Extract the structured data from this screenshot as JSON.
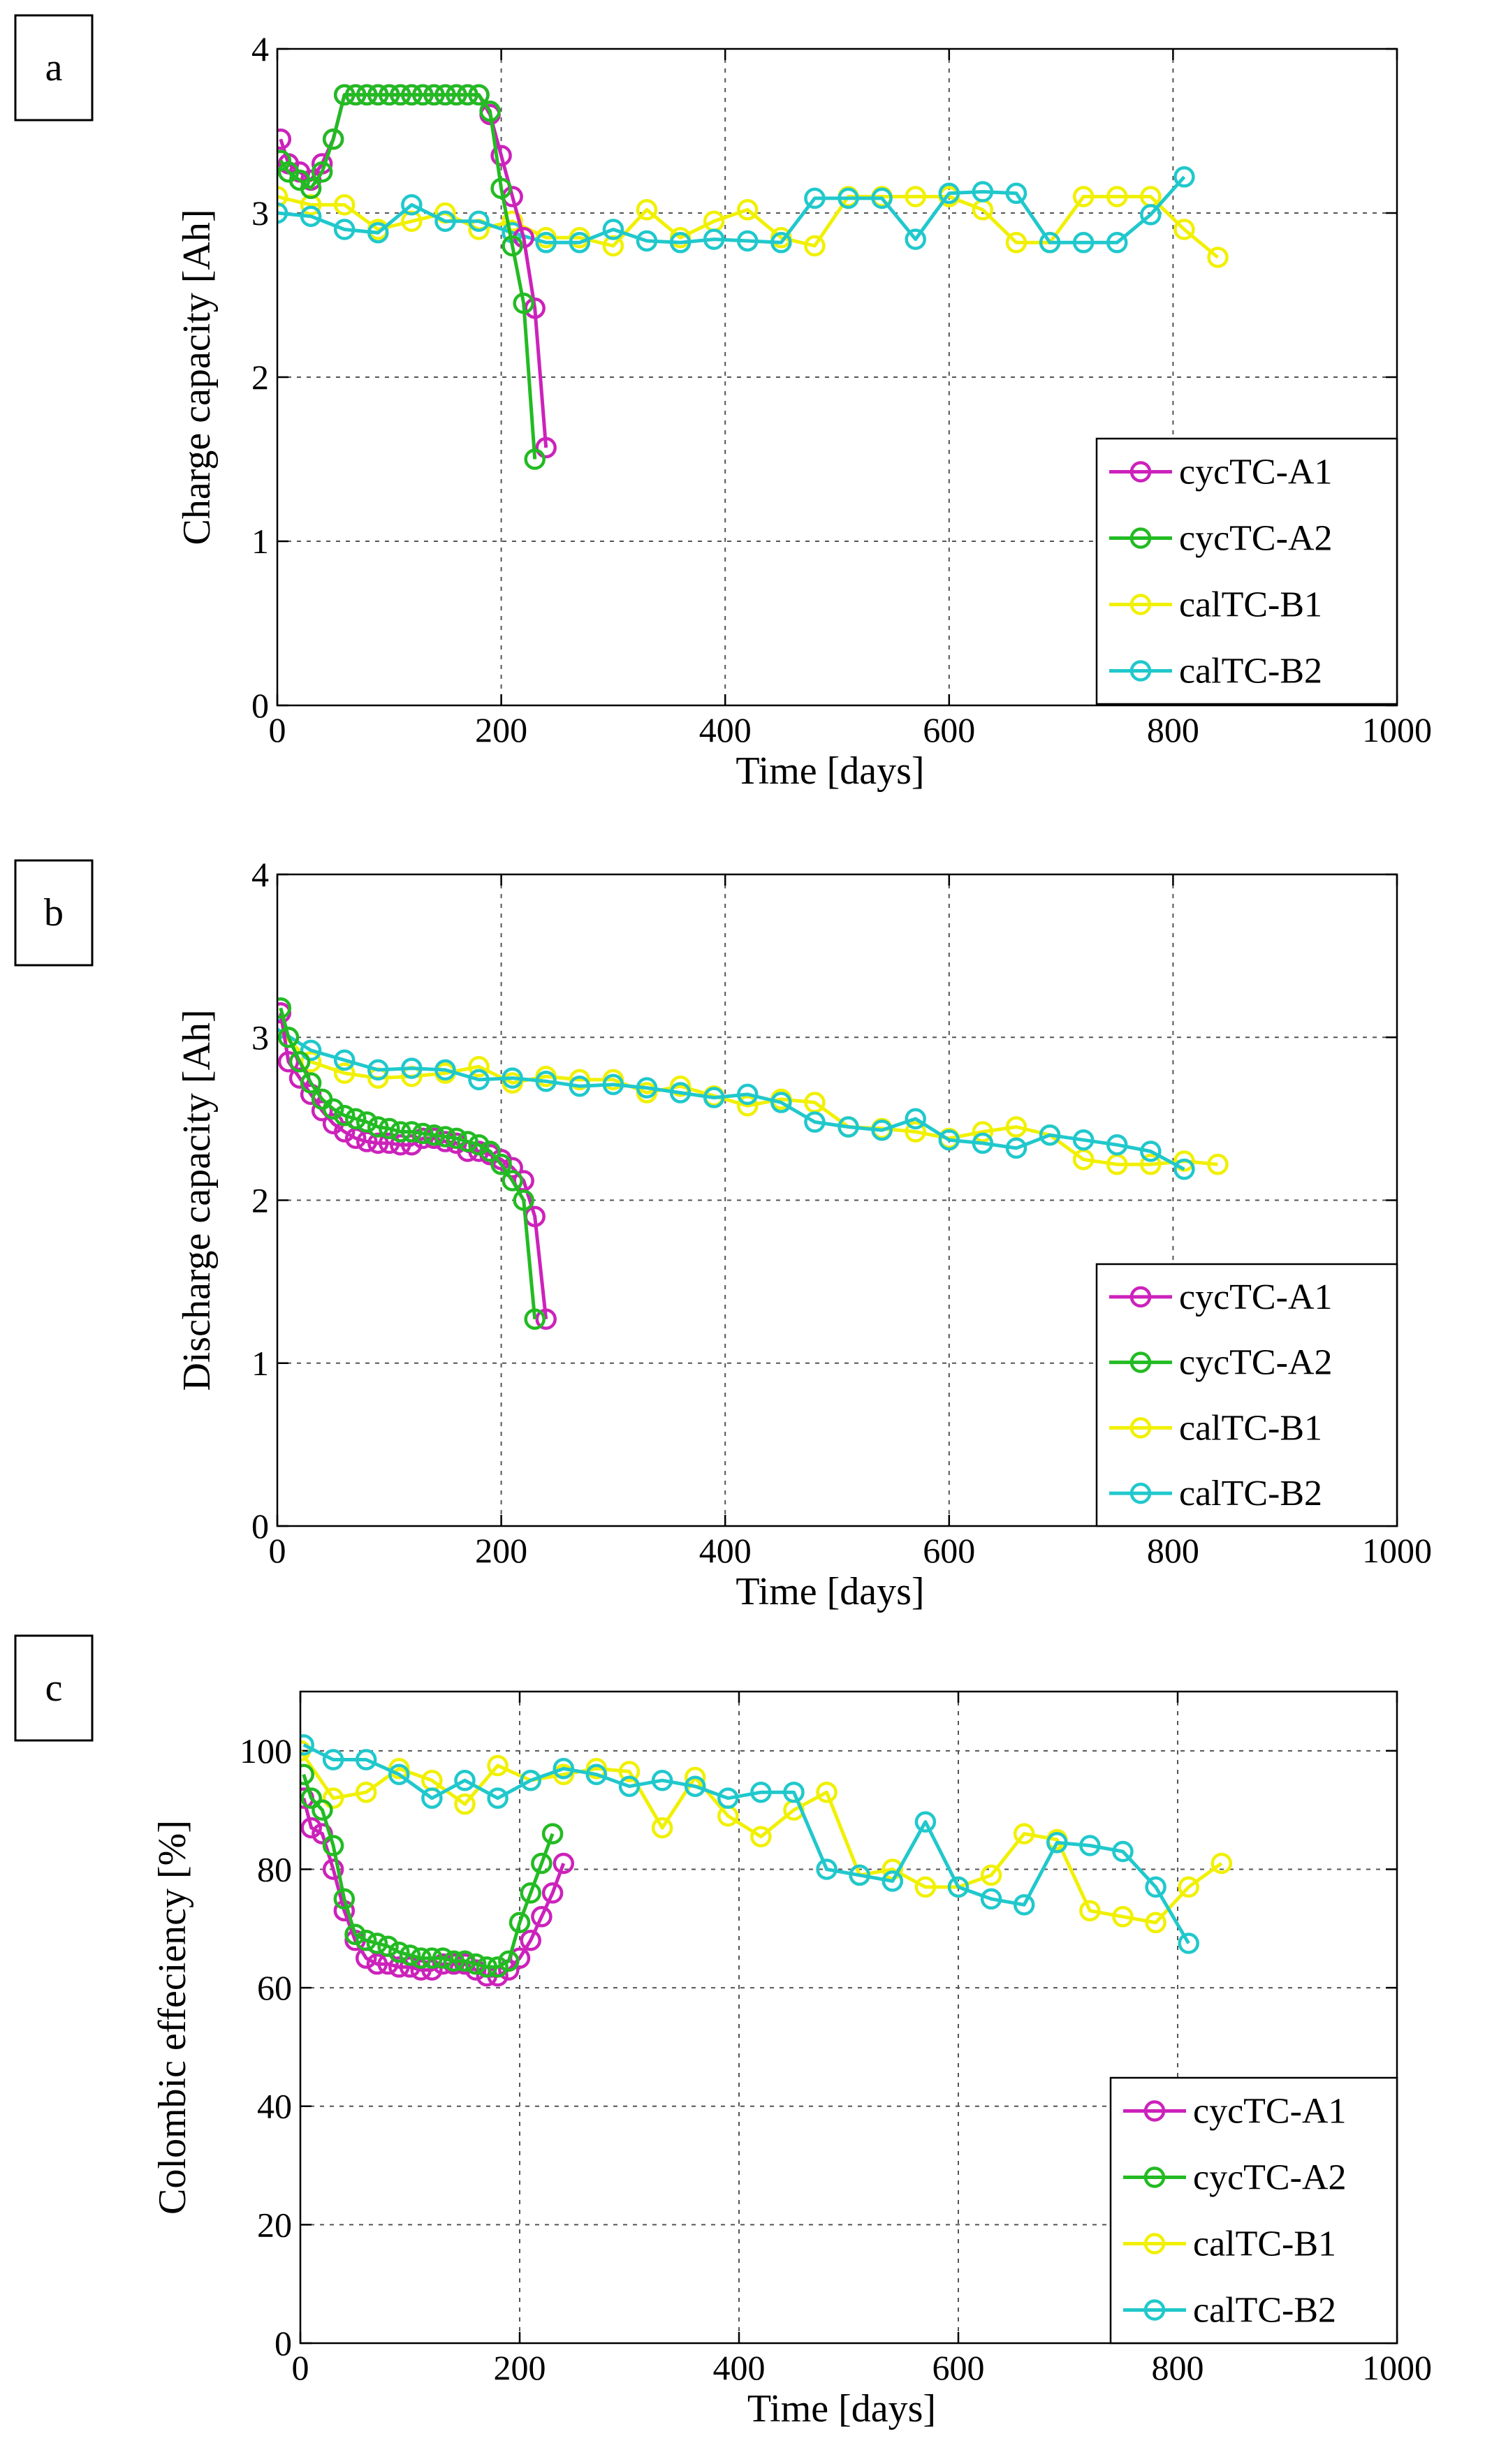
{
  "colors": {
    "cycTC-A1": "#cc22bb",
    "cycTC-A2": "#22bb22",
    "calTC-B1": "#f0f000",
    "calTC-B2": "#20c8cc"
  },
  "chart_data": [
    {
      "type": "line",
      "panel_label": "a",
      "title": "",
      "xlabel": "Time [days]",
      "ylabel": "Charge capacity [Ah]",
      "xlim": [
        0,
        1000
      ],
      "ylim": [
        0,
        4
      ],
      "xticks": [
        "0",
        "200",
        "400",
        "600",
        "800",
        "1000"
      ],
      "yticks": [
        "0",
        "1",
        "2",
        "3",
        "4"
      ],
      "grid": true,
      "legend_position": "bottom-right",
      "series": [
        {
          "name": "cycTC-A1",
          "x": [
            3,
            10,
            20,
            30,
            40,
            50,
            60,
            70,
            80,
            90,
            100,
            110,
            120,
            130,
            140,
            150,
            160,
            170,
            180,
            190,
            200,
            210,
            220,
            230,
            240
          ],
          "y": [
            3.45,
            3.3,
            3.25,
            3.2,
            3.3,
            3.45,
            3.72,
            3.72,
            3.72,
            3.72,
            3.72,
            3.72,
            3.72,
            3.72,
            3.72,
            3.72,
            3.72,
            3.72,
            3.72,
            3.6,
            3.35,
            3.1,
            2.85,
            2.42,
            1.57
          ]
        },
        {
          "name": "cycTC-A2",
          "x": [
            3,
            10,
            20,
            30,
            40,
            50,
            60,
            70,
            80,
            90,
            100,
            110,
            120,
            130,
            140,
            150,
            160,
            170,
            180,
            190,
            200,
            210,
            220,
            230
          ],
          "y": [
            3.32,
            3.25,
            3.2,
            3.15,
            3.25,
            3.45,
            3.72,
            3.72,
            3.72,
            3.72,
            3.72,
            3.72,
            3.72,
            3.72,
            3.72,
            3.72,
            3.72,
            3.72,
            3.72,
            3.62,
            3.15,
            2.8,
            2.45,
            1.5
          ]
        },
        {
          "name": "calTC-B1",
          "x": [
            0,
            30,
            60,
            90,
            120,
            150,
            180,
            210,
            240,
            270,
            300,
            330,
            360,
            390,
            420,
            450,
            480,
            510,
            540,
            570,
            600,
            630,
            660,
            690,
            720,
            750,
            780,
            810,
            840
          ],
          "y": [
            3.1,
            3.05,
            3.05,
            2.9,
            2.95,
            3.0,
            2.9,
            2.95,
            2.85,
            2.85,
            2.8,
            3.02,
            2.85,
            2.95,
            3.02,
            2.85,
            2.8,
            3.1,
            3.1,
            3.1,
            3.1,
            3.02,
            2.82,
            2.82,
            3.1,
            3.1,
            3.1,
            2.9,
            2.73
          ]
        },
        {
          "name": "calTC-B2",
          "x": [
            0,
            30,
            60,
            90,
            120,
            150,
            180,
            210,
            240,
            270,
            300,
            330,
            360,
            390,
            420,
            450,
            480,
            510,
            540,
            570,
            600,
            630,
            660,
            690,
            720,
            750,
            780,
            810
          ],
          "y": [
            3.0,
            2.98,
            2.9,
            2.88,
            3.05,
            2.95,
            2.95,
            2.88,
            2.82,
            2.82,
            2.9,
            2.83,
            2.82,
            2.84,
            2.83,
            2.82,
            3.09,
            3.09,
            3.09,
            2.84,
            3.12,
            3.13,
            3.12,
            2.82,
            2.82,
            2.82,
            2.99,
            3.22
          ]
        }
      ]
    },
    {
      "type": "line",
      "panel_label": "b",
      "title": "",
      "xlabel": "Time [days]",
      "ylabel": "Discharge capacity [Ah]",
      "xlim": [
        0,
        1000
      ],
      "ylim": [
        0,
        4
      ],
      "xticks": [
        "0",
        "200",
        "400",
        "600",
        "800",
        "1000"
      ],
      "yticks": [
        "0",
        "1",
        "2",
        "3",
        "4"
      ],
      "grid": true,
      "legend_position": "bottom-right",
      "series": [
        {
          "name": "cycTC-A1",
          "x": [
            3,
            10,
            20,
            30,
            40,
            50,
            60,
            70,
            80,
            90,
            100,
            110,
            120,
            130,
            140,
            150,
            160,
            170,
            180,
            190,
            200,
            210,
            220,
            230,
            240
          ],
          "y": [
            3.15,
            2.85,
            2.75,
            2.65,
            2.55,
            2.47,
            2.42,
            2.38,
            2.36,
            2.35,
            2.35,
            2.34,
            2.34,
            2.38,
            2.38,
            2.36,
            2.35,
            2.3,
            2.3,
            2.28,
            2.25,
            2.2,
            2.12,
            1.9,
            1.27
          ]
        },
        {
          "name": "cycTC-A2",
          "x": [
            3,
            10,
            20,
            30,
            40,
            50,
            60,
            70,
            80,
            90,
            100,
            110,
            120,
            130,
            140,
            150,
            160,
            170,
            180,
            190,
            200,
            210,
            220,
            230
          ],
          "y": [
            3.18,
            3.0,
            2.85,
            2.72,
            2.62,
            2.56,
            2.52,
            2.5,
            2.48,
            2.45,
            2.44,
            2.42,
            2.42,
            2.41,
            2.4,
            2.39,
            2.38,
            2.36,
            2.34,
            2.3,
            2.22,
            2.12,
            2.0,
            1.27
          ]
        },
        {
          "name": "calTC-B1",
          "x": [
            0,
            30,
            60,
            90,
            120,
            150,
            180,
            210,
            240,
            270,
            300,
            330,
            360,
            390,
            420,
            450,
            480,
            510,
            540,
            570,
            600,
            630,
            660,
            690,
            720,
            750,
            780,
            810,
            840
          ],
          "y": [
            3.05,
            2.85,
            2.78,
            2.75,
            2.76,
            2.78,
            2.82,
            2.72,
            2.76,
            2.74,
            2.74,
            2.66,
            2.7,
            2.64,
            2.58,
            2.62,
            2.6,
            2.45,
            2.44,
            2.42,
            2.38,
            2.42,
            2.45,
            2.4,
            2.25,
            2.22,
            2.22,
            2.24,
            2.22
          ]
        },
        {
          "name": "calTC-B2",
          "x": [
            0,
            30,
            60,
            90,
            120,
            150,
            180,
            210,
            240,
            270,
            300,
            330,
            360,
            390,
            420,
            450,
            480,
            510,
            540,
            570,
            600,
            630,
            660,
            690,
            720,
            750,
            780,
            810
          ],
          "y": [
            3.05,
            2.92,
            2.86,
            2.8,
            2.81,
            2.8,
            2.74,
            2.75,
            2.73,
            2.7,
            2.71,
            2.69,
            2.66,
            2.63,
            2.65,
            2.6,
            2.48,
            2.45,
            2.43,
            2.5,
            2.37,
            2.35,
            2.32,
            2.4,
            2.37,
            2.34,
            2.3,
            2.19
          ]
        }
      ]
    },
    {
      "type": "line",
      "panel_label": "c",
      "title": "",
      "xlabel": "Time [days]",
      "ylabel": "Colombic effeciency [%]",
      "xlim": [
        0,
        1000
      ],
      "ylim": [
        0,
        110
      ],
      "xticks": [
        "0",
        "200",
        "400",
        "600",
        "800",
        "1000"
      ],
      "yticks": [
        "0",
        "20",
        "40",
        "60",
        "80",
        "100"
      ],
      "grid": true,
      "legend_position": "bottom-right",
      "series": [
        {
          "name": "cycTC-A1",
          "x": [
            3,
            10,
            20,
            30,
            40,
            50,
            60,
            70,
            80,
            90,
            100,
            110,
            120,
            130,
            140,
            150,
            160,
            170,
            180,
            190,
            200,
            210,
            220,
            230,
            240
          ],
          "y": [
            92,
            87,
            86,
            80,
            73,
            68,
            65,
            64,
            64,
            63.5,
            63.5,
            63,
            63,
            64,
            64,
            64,
            63,
            62,
            62,
            63,
            65,
            68,
            72,
            76,
            81
          ]
        },
        {
          "name": "cycTC-A2",
          "x": [
            3,
            10,
            20,
            30,
            40,
            50,
            60,
            70,
            80,
            90,
            100,
            110,
            120,
            130,
            140,
            150,
            160,
            170,
            180,
            190,
            200,
            210,
            220,
            230
          ],
          "y": [
            96,
            92,
            90,
            84,
            75,
            69,
            68,
            67.5,
            67,
            66,
            65.5,
            65,
            65,
            65,
            64.5,
            64.5,
            64,
            63.5,
            63.5,
            64.5,
            71,
            76,
            81,
            86
          ]
        },
        {
          "name": "calTC-B1",
          "x": [
            0,
            30,
            60,
            90,
            120,
            150,
            180,
            210,
            240,
            270,
            300,
            330,
            360,
            390,
            420,
            450,
            480,
            510,
            540,
            570,
            600,
            630,
            660,
            690,
            720,
            750,
            780,
            810,
            840
          ],
          "y": [
            100,
            92,
            93,
            97,
            95,
            91,
            97.5,
            95,
            96,
            97,
            96.5,
            87,
            95.5,
            89,
            85.5,
            90,
            93,
            79,
            80,
            77,
            77,
            79,
            86,
            85,
            73,
            72,
            71,
            77,
            81
          ]
        },
        {
          "name": "calTC-B2",
          "x": [
            3,
            30,
            60,
            90,
            120,
            150,
            180,
            210,
            240,
            270,
            300,
            330,
            360,
            390,
            420,
            450,
            480,
            510,
            540,
            570,
            600,
            630,
            660,
            690,
            720,
            750,
            780,
            810
          ],
          "y": [
            101,
            98.5,
            98.5,
            96,
            92,
            95,
            92,
            95,
            97,
            96,
            94,
            95,
            94,
            92,
            93,
            93,
            80,
            79,
            78,
            88,
            77,
            75,
            74,
            84.5,
            84,
            83,
            77,
            67.5
          ]
        }
      ]
    }
  ]
}
